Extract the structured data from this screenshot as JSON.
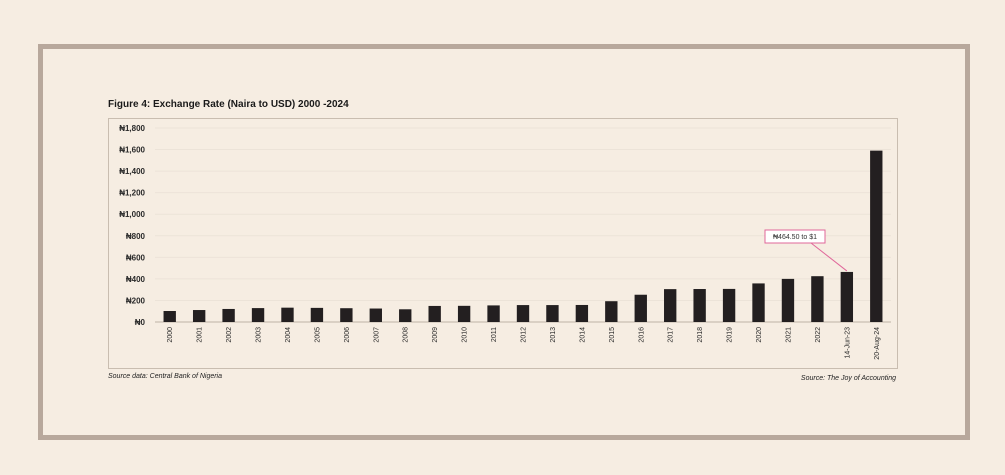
{
  "figure": {
    "title": "Figure 4: Exchange Rate (Naira to USD) 2000 -2024",
    "source_left": "Source data: Central Bank of Nigeria",
    "source_right": "Source:  The Joy of Accounting"
  },
  "chart_data": {
    "type": "bar",
    "title": "Figure 4: Exchange Rate (Naira to USD) 2000 -2024",
    "xlabel": "",
    "ylabel": "",
    "categories": [
      "2000",
      "2001",
      "2002",
      "2003",
      "2004",
      "2005",
      "2006",
      "2007",
      "2008",
      "2009",
      "2010",
      "2011",
      "2012",
      "2013",
      "2014",
      "2015",
      "2016",
      "2017",
      "2018",
      "2019",
      "2020",
      "2021",
      "2022",
      "14-Jun-23",
      "20-Aug-24"
    ],
    "values": [
      102,
      111,
      121,
      129,
      133,
      131,
      128,
      125,
      118,
      149,
      150,
      154,
      157,
      157,
      158,
      193,
      253,
      305,
      306,
      307,
      358,
      400,
      425,
      464.5,
      1590
    ],
    "ylim": [
      0,
      1800
    ],
    "yticks": [
      0,
      200,
      400,
      600,
      800,
      1000,
      1200,
      1400,
      1600,
      1800
    ],
    "ytick_labels": [
      "₦0",
      "₦200",
      "₦400",
      "₦600",
      "₦800",
      "₦1,000",
      "₦1,200",
      "₦1,400",
      "₦1,600",
      "₦1,800"
    ],
    "bar_color": "#231f20",
    "grid": true,
    "legend": "none",
    "annotation": {
      "text": "₦464.50 to $1",
      "target_index": 23,
      "color": "#e0679a"
    }
  }
}
